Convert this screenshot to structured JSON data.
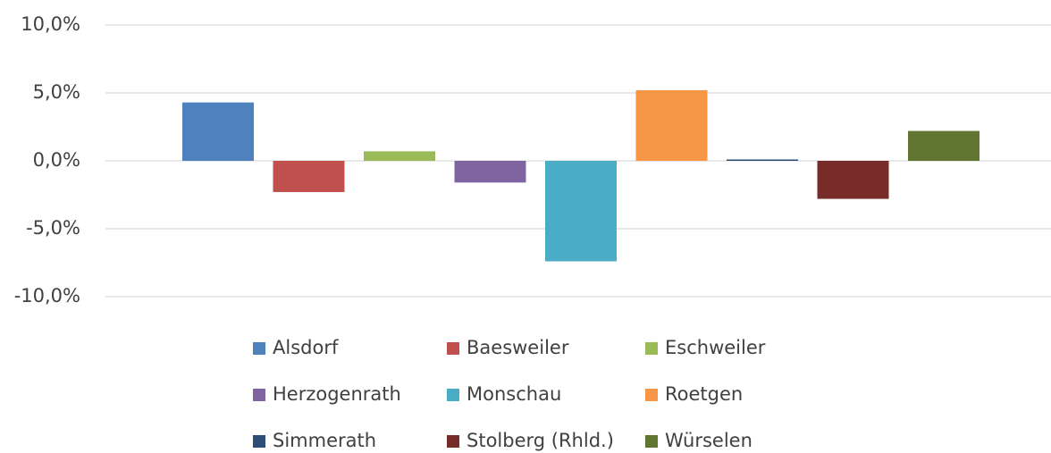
{
  "chart_data": {
    "type": "bar",
    "categories": [
      null
    ],
    "series": [
      {
        "name": "Alsdorf",
        "color": "#4f81bd",
        "values": [
          4.3
        ]
      },
      {
        "name": "Baesweiler",
        "color": "#c0504d",
        "values": [
          -2.3
        ]
      },
      {
        "name": "Eschweiler",
        "color": "#9bbb59",
        "values": [
          0.7
        ]
      },
      {
        "name": "Herzogenrath",
        "color": "#8064a2",
        "values": [
          -1.6
        ]
      },
      {
        "name": "Monschau",
        "color": "#4bacc6",
        "values": [
          -7.4
        ]
      },
      {
        "name": "Roetgen",
        "color": "#f79646",
        "values": [
          5.2
        ]
      },
      {
        "name": "Simmerath",
        "color": "#2c4d75",
        "values": [
          0.1
        ]
      },
      {
        "name": "Stolberg (Rhld.)",
        "color": "#772c2a",
        "values": [
          -2.8
        ]
      },
      {
        "name": "Würselen",
        "color": "#5f7530",
        "values": [
          2.2
        ]
      }
    ],
    "ylim": [
      -10,
      10
    ],
    "yticks": [
      {
        "value": -10,
        "label": "-10,0%"
      },
      {
        "value": -5,
        "label": "-5,0%"
      },
      {
        "value": 0,
        "label": "0,0%"
      },
      {
        "value": 5,
        "label": "5,0%"
      },
      {
        "value": 10,
        "label": "10,0%"
      }
    ],
    "grid": true,
    "legend": "bottom"
  }
}
